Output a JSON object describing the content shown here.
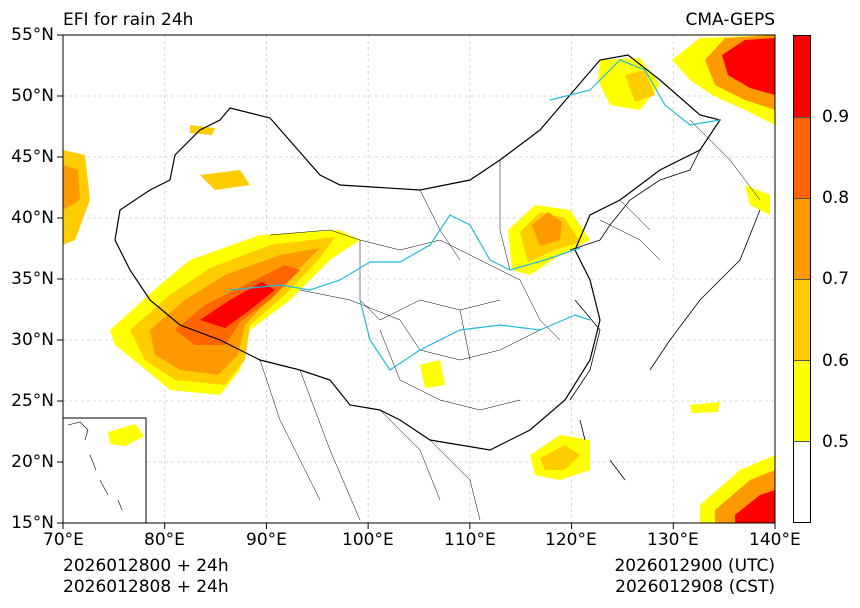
{
  "title": "EFI for rain 24h",
  "source": "CMA-GEPS",
  "map": {
    "lon_ticks": [
      "70°E",
      "80°E",
      "90°E",
      "100°E",
      "110°E",
      "120°E",
      "130°E",
      "140°E"
    ],
    "lat_ticks": [
      "55°N",
      "50°N",
      "45°N",
      "40°N",
      "35°N",
      "30°N",
      "25°N",
      "20°N",
      "15°N"
    ],
    "lon_range": [
      70,
      140
    ],
    "lat_range": [
      15,
      55
    ],
    "grid": true
  },
  "colorbar": {
    "levels": [
      "0.5",
      "0.6",
      "0.7",
      "0.8",
      "0.9"
    ],
    "colors": [
      "#ffffff",
      "#ffff00",
      "#ffcc00",
      "#ff9900",
      "#ff6600",
      "#ff0000"
    ]
  },
  "init_utc": "2026012800 + 24h",
  "init_cst": "2026012808 + 24h",
  "valid_utc": "2026012900 (UTC)",
  "valid_cst": "2026012908 (CST)"
}
